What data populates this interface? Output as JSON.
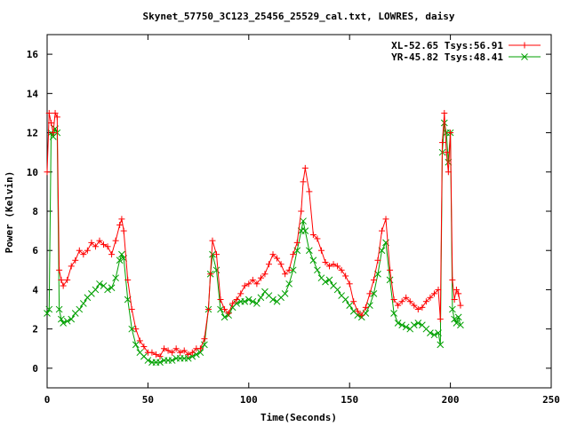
{
  "chart_data": {
    "type": "line",
    "title": "Skynet_57750_3C123_25456_25529_cal.txt, LOWRES, daisy",
    "xlabel": "Time(Seconds)",
    "ylabel": "Power (Kelvin)",
    "xlim": [
      0,
      250
    ],
    "ylim": [
      -1,
      17
    ],
    "xticks": [
      0,
      50,
      100,
      150,
      200,
      250
    ],
    "yticks": [
      0,
      2,
      4,
      6,
      8,
      10,
      12,
      14,
      16
    ],
    "grid": false,
    "legend_position": "top-right",
    "series": [
      {
        "name": "XL-52.65 Tsys:56.91",
        "color": "#ff0000",
        "marker": "plus",
        "x": [
          0,
          1,
          2,
          3,
          4,
          5,
          6,
          7,
          8,
          10,
          12,
          14,
          16,
          18,
          20,
          22,
          24,
          26,
          28,
          30,
          32,
          34,
          36,
          37,
          38,
          40,
          42,
          44,
          46,
          48,
          50,
          52,
          54,
          56,
          58,
          60,
          62,
          64,
          66,
          68,
          70,
          72,
          74,
          76,
          78,
          80,
          81,
          82,
          84,
          86,
          88,
          90,
          92,
          94,
          96,
          98,
          100,
          102,
          104,
          106,
          108,
          110,
          112,
          114,
          116,
          118,
          120,
          122,
          124,
          126,
          127,
          128,
          130,
          132,
          134,
          136,
          138,
          140,
          142,
          144,
          146,
          148,
          150,
          152,
          154,
          156,
          158,
          160,
          162,
          164,
          166,
          168,
          170,
          172,
          174,
          176,
          178,
          180,
          182,
          184,
          186,
          188,
          190,
          192,
          194,
          195,
          196,
          197,
          198,
          199,
          200,
          201,
          202,
          203,
          204,
          205
        ],
        "y": [
          10,
          13,
          12.5,
          12,
          13,
          12.8,
          5,
          4.5,
          4.2,
          4.5,
          5.2,
          5.5,
          6.0,
          5.8,
          6.0,
          6.4,
          6.2,
          6.5,
          6.3,
          6.2,
          5.8,
          6.5,
          7.3,
          7.6,
          7.0,
          4.5,
          3.0,
          2.0,
          1.4,
          1.1,
          0.8,
          0.8,
          0.7,
          0.6,
          1.0,
          0.9,
          0.8,
          1.0,
          0.8,
          0.9,
          0.7,
          0.8,
          1.0,
          1.0,
          1.5,
          3.0,
          4.8,
          6.5,
          5.8,
          3.5,
          3.0,
          2.8,
          3.3,
          3.5,
          3.8,
          4.2,
          4.3,
          4.5,
          4.3,
          4.6,
          4.8,
          5.3,
          5.8,
          5.6,
          5.3,
          4.8,
          5.0,
          5.8,
          6.4,
          8.0,
          9.5,
          10.2,
          9.0,
          6.8,
          6.6,
          6.0,
          5.4,
          5.2,
          5.3,
          5.2,
          5.0,
          4.7,
          4.3,
          3.4,
          2.9,
          2.7,
          3.1,
          3.8,
          4.5,
          5.5,
          7.0,
          7.6,
          5.0,
          3.5,
          3.2,
          3.4,
          3.6,
          3.4,
          3.2,
          3.0,
          3.1,
          3.4,
          3.6,
          3.8,
          4.0,
          2.5,
          11.5,
          13.0,
          11.0,
          10.0,
          12.0,
          4.5,
          3.5,
          4.0,
          3.8,
          3.2
        ]
      },
      {
        "name": "YR-45.82 Tsys:48.41",
        "color": "#00a000",
        "marker": "cross",
        "x": [
          0,
          1,
          2,
          3,
          4,
          5,
          6,
          7,
          8,
          10,
          12,
          14,
          16,
          18,
          20,
          22,
          24,
          26,
          28,
          30,
          32,
          34,
          36,
          37,
          38,
          40,
          42,
          44,
          46,
          48,
          50,
          52,
          54,
          56,
          58,
          60,
          62,
          64,
          66,
          68,
          70,
          72,
          74,
          76,
          78,
          80,
          81,
          82,
          84,
          86,
          88,
          90,
          92,
          94,
          96,
          98,
          100,
          102,
          104,
          106,
          108,
          110,
          112,
          114,
          116,
          118,
          120,
          122,
          124,
          126,
          127,
          128,
          130,
          132,
          134,
          136,
          138,
          140,
          142,
          144,
          146,
          148,
          150,
          152,
          154,
          156,
          158,
          160,
          162,
          164,
          166,
          168,
          170,
          172,
          174,
          176,
          178,
          180,
          182,
          184,
          186,
          188,
          190,
          192,
          194,
          195,
          196,
          197,
          198,
          199,
          200,
          201,
          202,
          203,
          204,
          205
        ],
        "y": [
          2.8,
          3.0,
          12.0,
          11.8,
          12.2,
          12.0,
          3.0,
          2.5,
          2.3,
          2.4,
          2.5,
          2.8,
          3.0,
          3.3,
          3.6,
          3.8,
          4.0,
          4.3,
          4.2,
          4.0,
          4.1,
          4.6,
          5.5,
          5.8,
          5.6,
          3.5,
          2.0,
          1.2,
          0.8,
          0.6,
          0.4,
          0.3,
          0.3,
          0.3,
          0.4,
          0.4,
          0.4,
          0.5,
          0.5,
          0.5,
          0.5,
          0.6,
          0.7,
          0.8,
          1.2,
          3.0,
          4.8,
          5.8,
          5.0,
          3.0,
          2.6,
          2.7,
          3.1,
          3.3,
          3.4,
          3.4,
          3.5,
          3.4,
          3.3,
          3.6,
          3.9,
          3.7,
          3.5,
          3.4,
          3.6,
          3.8,
          4.3,
          5.0,
          6.0,
          7.0,
          7.5,
          7.0,
          6.0,
          5.5,
          5.0,
          4.6,
          4.4,
          4.5,
          4.2,
          4.0,
          3.7,
          3.5,
          3.2,
          2.9,
          2.7,
          2.6,
          2.8,
          3.2,
          3.8,
          4.8,
          6.0,
          6.4,
          4.5,
          2.8,
          2.3,
          2.2,
          2.1,
          2.0,
          2.2,
          2.3,
          2.2,
          2.0,
          1.8,
          1.7,
          1.8,
          1.2,
          11.0,
          12.5,
          12.0,
          10.5,
          12.0,
          3.0,
          2.5,
          2.3,
          2.6,
          2.2
        ]
      }
    ]
  }
}
